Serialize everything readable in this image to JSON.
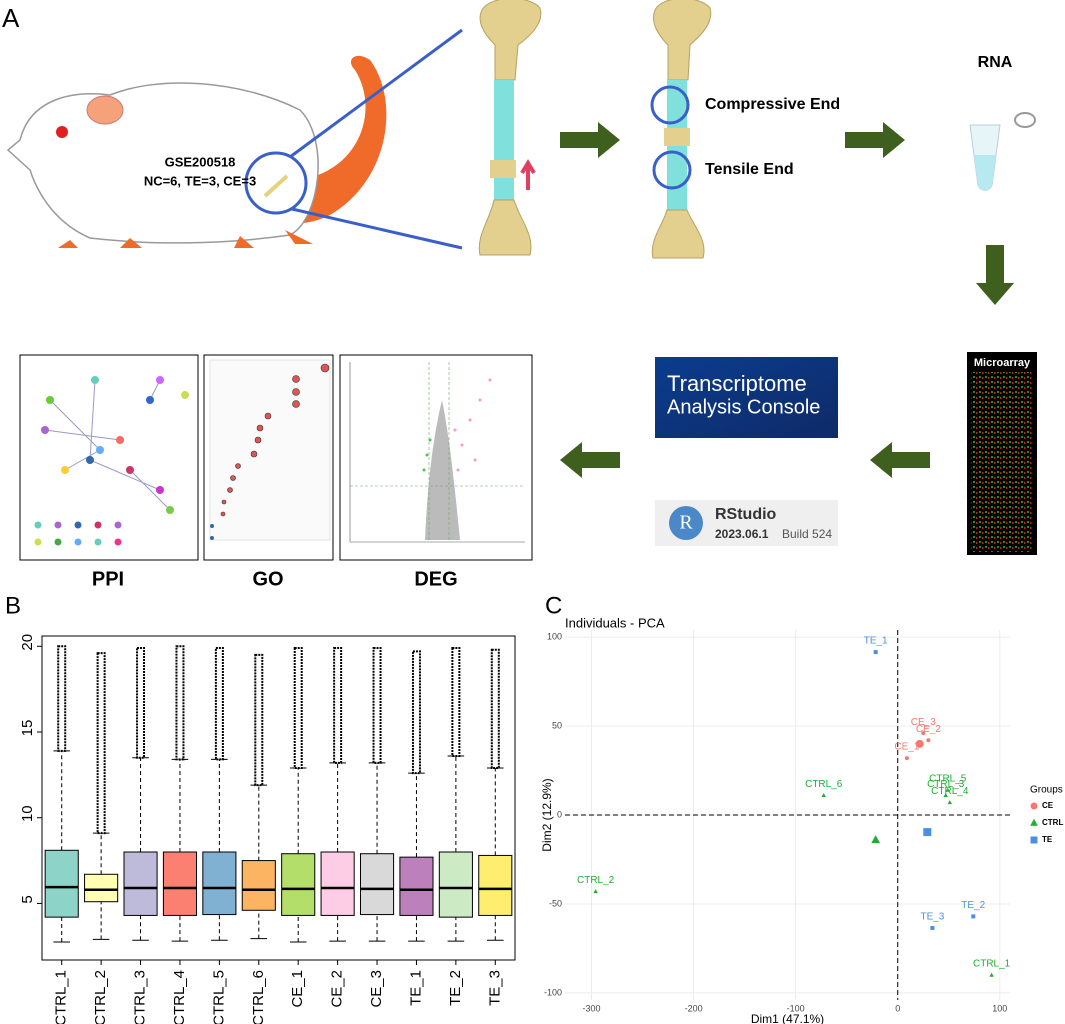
{
  "panel_labels": [
    "A",
    "B",
    "C"
  ],
  "schematic": {
    "dataset": "GSE200518",
    "samples": "NC=6, TE=3, CE=3",
    "compressive": "Compressive End",
    "tensile": "Tensile End",
    "rna": "RNA",
    "microarray": "Microarray",
    "tac_1": "Transcriptome",
    "tac_2": "Analysis Console",
    "rstudio": "RStudio",
    "version": "2023.06.1",
    "build": "Build 524",
    "outputs": [
      "PPI",
      "GO",
      "DEG"
    ]
  },
  "chart_data": [
    {
      "type": "box",
      "categories": [
        "CTRL_1",
        "CTRL_2",
        "CTRL_3",
        "CTRL_4",
        "CTRL_5",
        "CTRL_6",
        "CE_1",
        "CE_2",
        "CE_3",
        "TE_1",
        "TE_2",
        "TE_3"
      ],
      "colors": [
        "#8dd3c7",
        "#ffffb3",
        "#bebada",
        "#fb8072",
        "#80b1d3",
        "#fdb462",
        "#b3de69",
        "#fccde5",
        "#d9d9d9",
        "#bc80bd",
        "#ccebc5",
        "#ffed6f"
      ],
      "low": [
        2.75,
        2.9,
        2.85,
        2.8,
        2.85,
        2.95,
        2.75,
        2.8,
        2.8,
        2.8,
        2.8,
        2.85
      ],
      "q1": [
        4.2,
        5.1,
        4.3,
        4.3,
        4.35,
        4.6,
        4.3,
        4.3,
        4.35,
        4.3,
        4.2,
        4.3
      ],
      "median": [
        5.95,
        5.8,
        5.9,
        5.9,
        5.9,
        5.8,
        5.85,
        5.9,
        5.85,
        5.8,
        5.9,
        5.85
      ],
      "q3": [
        8.1,
        6.7,
        8.0,
        8.0,
        8.0,
        7.5,
        7.9,
        8.0,
        7.9,
        7.7,
        8.0,
        7.8
      ],
      "high": [
        13.9,
        9.1,
        13.5,
        13.4,
        13.4,
        11.9,
        12.9,
        13.2,
        13.2,
        12.6,
        13.6,
        12.9
      ],
      "max": [
        20.0,
        19.6,
        19.9,
        20.0,
        19.9,
        19.5,
        19.9,
        19.9,
        19.9,
        19.7,
        19.9,
        19.8
      ],
      "ylim": [
        1.7,
        20.6
      ],
      "yticks": [
        5,
        10,
        15,
        20
      ]
    },
    {
      "type": "scatter",
      "title": "Individuals - PCA",
      "xlabel": "Dim1 (47.1%)",
      "ylabel": "Dim2 (12.9%)",
      "legend_title": "Groups",
      "legend": "right",
      "grid": true,
      "xlim": [
        -326,
        110
      ],
      "ylim": [
        -104,
        104
      ],
      "xticks": [
        -300,
        -200,
        -100,
        0,
        100
      ],
      "yticks": [
        -100,
        -50,
        0,
        50,
        100
      ],
      "series": [
        {
          "name": "CE",
          "color": "#f8766d",
          "marker": "circle",
          "x": [
            25,
            30,
            9,
            21.5
          ],
          "y": [
            46,
            42,
            32,
            40
          ],
          "labels": [
            "CE_3",
            "CE_2",
            "CE_1",
            null
          ],
          "sizes": [
            2,
            2,
            2,
            4
          ]
        },
        {
          "name": "CTRL",
          "color": "#1fae2f",
          "marker": "triangle",
          "x": [
            49,
            47,
            51,
            -72.5,
            -296,
            92,
            -21.6
          ],
          "y": [
            14,
            11,
            7,
            11,
            -43,
            -90,
            -14
          ],
          "labels": [
            "CTRL_5",
            "CTRL_3",
            "CTRL_4",
            "CTRL_6",
            "CTRL_2",
            "CTRL_1",
            null
          ],
          "sizes": [
            2,
            2,
            2,
            2,
            2,
            2,
            4
          ]
        },
        {
          "name": "TE",
          "color": "#4a90e2",
          "marker": "square",
          "x": [
            -21.6,
            34,
            74,
            29
          ],
          "y": [
            91.6,
            -63.5,
            -57,
            -9.6
          ],
          "labels": [
            "TE_1",
            "TE_3",
            "TE_2",
            null
          ],
          "sizes": [
            2,
            2,
            2,
            4
          ]
        }
      ]
    }
  ]
}
